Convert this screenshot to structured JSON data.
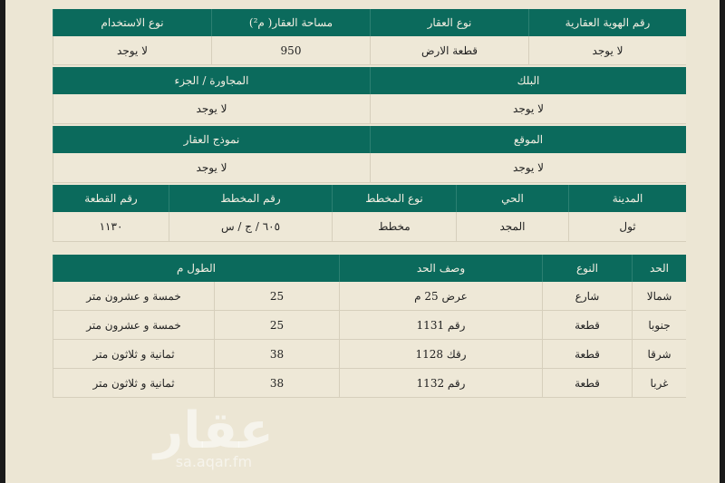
{
  "colors": {
    "header": "#0b6a5c",
    "background": "#ece6d4"
  },
  "watermark": {
    "logo": "عقار",
    "site": "sa.aqar.fm"
  },
  "property": {
    "headers": [
      "رقم الهوية العقارية",
      "نوع العقار",
      "مساحة العقار( م²)",
      "نوع الاستخدام"
    ],
    "values": [
      "لا يوجد",
      "قطعة الارض",
      "950",
      "لا يوجد"
    ]
  },
  "block": {
    "headers": [
      "البلك",
      "المجاورة / الجزء"
    ],
    "values": [
      "لا يوجد",
      "لا يوجد"
    ]
  },
  "location": {
    "headers": [
      "الموقع",
      "نموذج العقار"
    ],
    "values": [
      "لا يوجد",
      "لا يوجد"
    ]
  },
  "plan": {
    "headers": [
      "المدينة",
      "الحي",
      "نوع المخطط",
      "رقم المخطط",
      "رقم القطعة"
    ],
    "values": [
      "ثول",
      "المجد",
      "مخطط",
      "٦٠٥ / ج / س",
      "١١٣٠"
    ]
  },
  "boundaries": {
    "headers": [
      "الحد",
      "النوع",
      "وصف الحد",
      "الطول م"
    ],
    "rows": [
      {
        "side": "شمالا",
        "type": "شارع",
        "desc": "عرض 25 م",
        "length": "25",
        "length_text": "خمسة و عشرون متر"
      },
      {
        "side": "جنوبا",
        "type": "قطعة",
        "desc": "رقم 1131",
        "length": "25",
        "length_text": "خمسة و عشرون متر"
      },
      {
        "side": "شرقا",
        "type": "قطعة",
        "desc": "رقك 1128",
        "length": "38",
        "length_text": "ثمانية و ثلاثون متر"
      },
      {
        "side": "غربا",
        "type": "قطعة",
        "desc": "رقم 1132",
        "length": "38",
        "length_text": "ثمانية و ثلاثون متر"
      }
    ]
  }
}
